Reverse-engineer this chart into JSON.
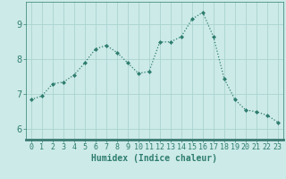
{
  "x": [
    0,
    1,
    2,
    3,
    4,
    5,
    6,
    7,
    8,
    9,
    10,
    11,
    12,
    13,
    14,
    15,
    16,
    17,
    18,
    19,
    20,
    21,
    22,
    23
  ],
  "y": [
    6.85,
    6.95,
    7.3,
    7.35,
    7.55,
    7.9,
    8.3,
    8.4,
    8.2,
    7.9,
    7.6,
    7.65,
    8.5,
    8.5,
    8.65,
    9.15,
    9.35,
    8.65,
    7.45,
    6.85,
    6.55,
    6.5,
    6.4,
    6.2
  ],
  "line_color": "#2e7d6e",
  "marker": "D",
  "marker_size": 2.0,
  "bg_color": "#cceae8",
  "grid_color": "#aad4d0",
  "axis_color": "#2e7d6e",
  "bottom_bar_color": "#3a7a70",
  "xlabel": "Humidex (Indice chaleur)",
  "xlabel_fontsize": 7,
  "ylabel_ticks": [
    6,
    7,
    8,
    9
  ],
  "xlim": [
    -0.5,
    23.5
  ],
  "ylim": [
    5.7,
    9.65
  ],
  "tick_fontsize": 6,
  "ytick_fontsize": 7
}
